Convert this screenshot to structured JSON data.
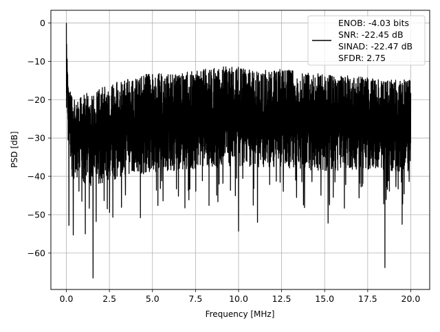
{
  "chart_data": {
    "type": "line",
    "xlabel": "Frequency [MHz]",
    "ylabel": "PSD [dB]",
    "xlim": [
      -0.9,
      21.1
    ],
    "ylim": [
      -69.5,
      3.3
    ],
    "x_ticks": [
      0.0,
      2.5,
      5.0,
      7.5,
      10.0,
      12.5,
      15.0,
      17.5,
      20.0
    ],
    "x_tick_labels": [
      "0.0",
      "2.5",
      "5.0",
      "7.5",
      "10.0",
      "12.5",
      "15.0",
      "17.5",
      "20.0"
    ],
    "y_ticks": [
      0,
      -10,
      -20,
      -30,
      -40,
      -50,
      -60
    ],
    "y_tick_labels": [
      "0",
      "−10",
      "−20",
      "−30",
      "−40",
      "−50",
      "−60"
    ],
    "grid": true,
    "legend_position": "upper-right",
    "legend": {
      "lines": [
        "ENOB: -4.03 bits",
        "SNR: -22.45 dB",
        "SINAD: -22.47 dB",
        "SFDR: 2.75"
      ]
    },
    "series": [
      {
        "color": "#000000",
        "description_of_shape": "dense noise floor",
        "x_range": [
          0,
          20
        ],
        "peak_at_dc": {
          "x": 0.0,
          "y": 0.0
        },
        "upper_envelope": [
          [
            0.0,
            0.0
          ],
          [
            0.1,
            -16.5
          ],
          [
            0.5,
            -20.0
          ],
          [
            1.0,
            -18.5
          ],
          [
            2.0,
            -17.0
          ],
          [
            3.5,
            -14.5
          ],
          [
            5.0,
            -13.0
          ],
          [
            6.5,
            -13.2
          ],
          [
            8.0,
            -12.0
          ],
          [
            9.5,
            -11.0
          ],
          [
            11.0,
            -12.5
          ],
          [
            12.5,
            -12.0
          ],
          [
            14.0,
            -13.0
          ],
          [
            15.5,
            -13.5
          ],
          [
            17.0,
            -14.0
          ],
          [
            18.5,
            -15.0
          ],
          [
            20.0,
            -14.5
          ]
        ],
        "lower_envelope": [
          [
            0.0,
            -20.0
          ],
          [
            0.3,
            -40.0
          ],
          [
            1.0,
            -43.0
          ],
          [
            2.0,
            -42.0
          ],
          [
            3.5,
            -40.0
          ],
          [
            5.0,
            -39.0
          ],
          [
            7.5,
            -38.0
          ],
          [
            10.0,
            -37.5
          ],
          [
            12.5,
            -38.0
          ],
          [
            15.0,
            -38.5
          ],
          [
            17.5,
            -38.5
          ],
          [
            20.0,
            -39.0
          ]
        ],
        "notable_dips": [
          {
            "x": 0.15,
            "y": -52.8
          },
          {
            "x": 0.4,
            "y": -55.3
          },
          {
            "x": 1.1,
            "y": -55.0
          },
          {
            "x": 1.55,
            "y": -66.5
          },
          {
            "x": 4.3,
            "y": -50.8
          },
          {
            "x": 10.0,
            "y": -54.3
          },
          {
            "x": 11.1,
            "y": -52.0
          },
          {
            "x": 15.2,
            "y": -52.2
          },
          {
            "x": 18.5,
            "y": -63.8
          },
          {
            "x": 19.5,
            "y": -52.5
          }
        ]
      }
    ]
  }
}
